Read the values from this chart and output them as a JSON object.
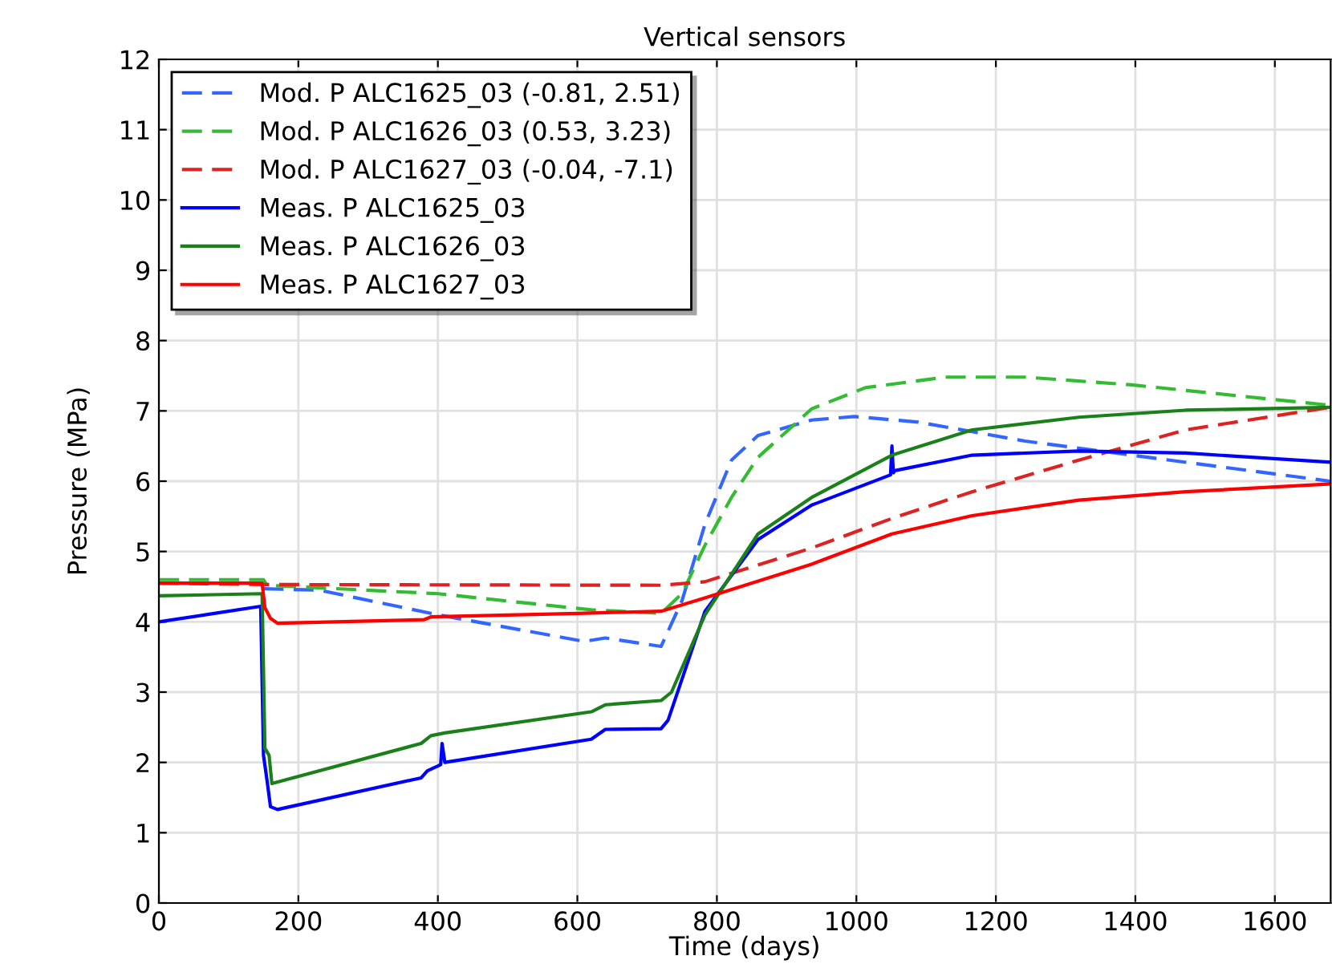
{
  "chart_data": {
    "type": "line",
    "title": "Vertical sensors",
    "xlabel": "Time (days)",
    "ylabel": "Pressure (MPa)",
    "xlim": [
      0,
      1680
    ],
    "xticks": [
      0,
      200,
      400,
      600,
      800,
      1000,
      1200,
      1400,
      1600
    ],
    "ylim": [
      0,
      12
    ],
    "yticks": [
      0,
      1,
      2,
      3,
      4,
      5,
      6,
      7,
      8,
      9,
      10,
      11,
      12
    ],
    "grid": true,
    "legend": "top left",
    "series": [
      {
        "name": "Mod. P ALC1625_03 (-0.81, 2.51)",
        "color": "#3366ff",
        "line_style": "dashed",
        "x": [
          150,
          230,
          400,
          610,
          640,
          720,
          750,
          783,
          821,
          859,
          936,
          997,
          1089,
          1242,
          1395,
          1679
        ],
        "values": [
          4.47,
          4.45,
          4.1,
          3.72,
          3.77,
          3.65,
          4.3,
          5.39,
          6.3,
          6.65,
          6.87,
          6.92,
          6.84,
          6.57,
          6.37,
          6.0
        ]
      },
      {
        "name": "Mod. P ALC1626_03 (0.53, 3.23)",
        "color": "#33bb33",
        "line_style": "dashed",
        "x": [
          0,
          150,
          155,
          400,
          620,
          720,
          750,
          783,
          821,
          859,
          936,
          1013,
          1128,
          1242,
          1395,
          1679
        ],
        "values": [
          4.6,
          4.6,
          4.52,
          4.4,
          4.17,
          4.12,
          4.4,
          5.09,
          5.77,
          6.34,
          7.03,
          7.33,
          7.48,
          7.48,
          7.37,
          7.08
        ]
      },
      {
        "name": "Mod. P ALC1627_03 (-0.04, -7.1)",
        "color": "#dd2222",
        "line_style": "dashed",
        "x": [
          0,
          150,
          720,
          783,
          936,
          1051,
          1166,
          1319,
          1472,
          1679
        ],
        "values": [
          4.55,
          4.53,
          4.52,
          4.57,
          5.05,
          5.47,
          5.85,
          6.3,
          6.73,
          7.05
        ]
      },
      {
        "name": "Meas. P ALC1625_03",
        "color": "#0000ff",
        "line_style": "solid",
        "x": [
          0,
          146,
          150,
          155,
          160,
          170,
          376,
          385,
          400,
          404,
          406,
          410,
          620,
          640,
          720,
          730,
          783,
          859,
          936,
          1049,
          1051,
          1053,
          1055,
          1166,
          1319,
          1472,
          1679
        ],
        "values": [
          4.0,
          4.22,
          2.1,
          1.75,
          1.37,
          1.33,
          1.78,
          1.88,
          1.95,
          1.97,
          2.27,
          2.0,
          2.33,
          2.47,
          2.48,
          2.6,
          4.15,
          5.17,
          5.66,
          6.09,
          6.5,
          6.12,
          6.15,
          6.37,
          6.43,
          6.4,
          6.27
        ]
      },
      {
        "name": "Meas. P ALC1626_03",
        "color": "#1a801a",
        "line_style": "solid",
        "x": [
          0,
          148,
          152,
          158,
          162,
          376,
          390,
          410,
          620,
          640,
          720,
          735,
          783,
          859,
          936,
          1051,
          1166,
          1319,
          1472,
          1679
        ],
        "values": [
          4.37,
          4.4,
          2.2,
          2.1,
          1.7,
          2.27,
          2.38,
          2.42,
          2.72,
          2.82,
          2.88,
          3.0,
          4.1,
          5.25,
          5.77,
          6.37,
          6.73,
          6.91,
          7.01,
          7.05
        ]
      },
      {
        "name": "Meas. P ALC1627_03",
        "color": "#ff0000",
        "line_style": "solid",
        "x": [
          0,
          148,
          152,
          160,
          170,
          380,
          390,
          600,
          720,
          783,
          936,
          1051,
          1166,
          1319,
          1472,
          1679
        ],
        "values": [
          4.55,
          4.55,
          4.2,
          4.05,
          3.98,
          4.03,
          4.07,
          4.12,
          4.15,
          4.34,
          4.82,
          5.25,
          5.51,
          5.73,
          5.85,
          5.96
        ]
      }
    ]
  }
}
